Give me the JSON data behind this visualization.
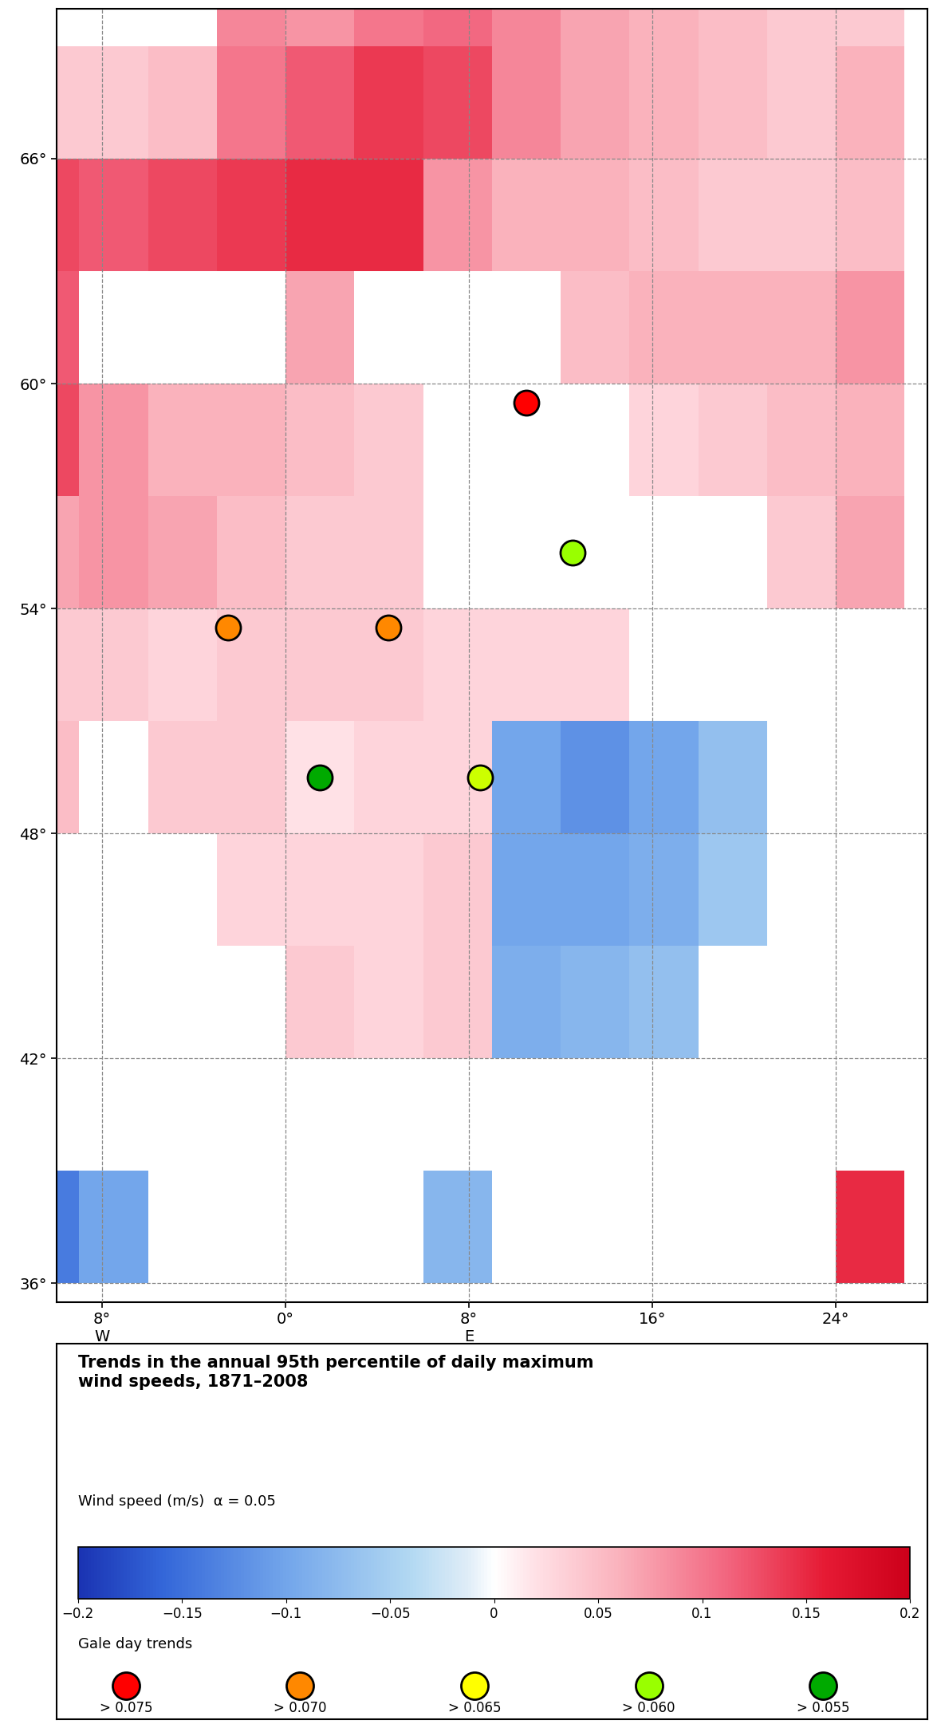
{
  "legend_title": "Trends in the annual 95th percentile of daily maximum\nwind speeds, 1871–2008",
  "colorbar_label": "Wind speed (m/s)  α = 0.05",
  "gale_day_label": "Gale day trends",
  "gale_day_circles": [
    {
      "color": "#ff0000",
      "label": "> 0.075"
    },
    {
      "color": "#ff8800",
      "label": "> 0.070"
    },
    {
      "color": "#ffff00",
      "label": "> 0.065"
    },
    {
      "color": "#99ff00",
      "label": "> 0.060"
    },
    {
      "color": "#00aa00",
      "label": "> 0.055"
    }
  ],
  "map_extent": [
    -10,
    28,
    35.5,
    70
  ],
  "lon_ticks": [
    -8,
    0,
    8,
    16,
    24
  ],
  "lat_ticks": [
    36,
    42,
    48,
    54,
    60,
    66
  ],
  "cell_size": 3,
  "grid_cells": [
    {
      "lon": -10.5,
      "lat": 67.5,
      "val": 0.04
    },
    {
      "lon": -10.5,
      "lat": 64.5,
      "val": 0.13
    },
    {
      "lon": -10.5,
      "lat": 61.5,
      "val": 0.12
    },
    {
      "lon": -10.5,
      "lat": 58.5,
      "val": 0.13
    },
    {
      "lon": -10.5,
      "lat": 55.5,
      "val": 0.07
    },
    {
      "lon": -10.5,
      "lat": 52.5,
      "val": 0.04
    },
    {
      "lon": -10.5,
      "lat": 49.5,
      "val": 0.05
    },
    {
      "lon": -10.5,
      "lat": 37.5,
      "val": -0.14
    },
    {
      "lon": -7.5,
      "lat": 67.5,
      "val": 0.04
    },
    {
      "lon": -7.5,
      "lat": 64.5,
      "val": 0.12
    },
    {
      "lon": -7.5,
      "lat": 58.5,
      "val": 0.08
    },
    {
      "lon": -7.5,
      "lat": 55.5,
      "val": 0.08
    },
    {
      "lon": -7.5,
      "lat": 52.5,
      "val": 0.04
    },
    {
      "lon": -7.5,
      "lat": 37.5,
      "val": -0.1
    },
    {
      "lon": -4.5,
      "lat": 67.5,
      "val": 0.05
    },
    {
      "lon": -4.5,
      "lat": 64.5,
      "val": 0.13
    },
    {
      "lon": -4.5,
      "lat": 58.5,
      "val": 0.06
    },
    {
      "lon": -4.5,
      "lat": 55.5,
      "val": 0.07
    },
    {
      "lon": -4.5,
      "lat": 52.5,
      "val": 0.03
    },
    {
      "lon": -4.5,
      "lat": 49.5,
      "val": 0.04
    },
    {
      "lon": -1.5,
      "lat": 70.0,
      "val": 0.09
    },
    {
      "lon": -1.5,
      "lat": 67.5,
      "val": 0.1
    },
    {
      "lon": -1.5,
      "lat": 64.5,
      "val": 0.14
    },
    {
      "lon": -1.5,
      "lat": 58.5,
      "val": 0.06
    },
    {
      "lon": -1.5,
      "lat": 55.5,
      "val": 0.05
    },
    {
      "lon": -1.5,
      "lat": 52.5,
      "val": 0.04
    },
    {
      "lon": -1.5,
      "lat": 49.5,
      "val": 0.04
    },
    {
      "lon": -1.5,
      "lat": 46.5,
      "val": 0.03
    },
    {
      "lon": 1.5,
      "lat": 70.0,
      "val": 0.08
    },
    {
      "lon": 1.5,
      "lat": 67.5,
      "val": 0.12
    },
    {
      "lon": 1.5,
      "lat": 64.5,
      "val": 0.15
    },
    {
      "lon": 1.5,
      "lat": 61.5,
      "val": 0.07
    },
    {
      "lon": 1.5,
      "lat": 58.5,
      "val": 0.05
    },
    {
      "lon": 1.5,
      "lat": 55.5,
      "val": 0.04
    },
    {
      "lon": 1.5,
      "lat": 52.5,
      "val": 0.04
    },
    {
      "lon": 1.5,
      "lat": 49.5,
      "val": 0.02
    },
    {
      "lon": 1.5,
      "lat": 46.5,
      "val": 0.03
    },
    {
      "lon": 1.5,
      "lat": 43.5,
      "val": 0.04
    },
    {
      "lon": 4.5,
      "lat": 70.0,
      "val": 0.1
    },
    {
      "lon": 4.5,
      "lat": 67.5,
      "val": 0.14
    },
    {
      "lon": 4.5,
      "lat": 64.5,
      "val": 0.15
    },
    {
      "lon": 4.5,
      "lat": 58.5,
      "val": 0.04
    },
    {
      "lon": 4.5,
      "lat": 55.5,
      "val": 0.04
    },
    {
      "lon": 4.5,
      "lat": 52.5,
      "val": 0.04
    },
    {
      "lon": 4.5,
      "lat": 49.5,
      "val": 0.03
    },
    {
      "lon": 4.5,
      "lat": 46.5,
      "val": 0.03
    },
    {
      "lon": 4.5,
      "lat": 43.5,
      "val": 0.03
    },
    {
      "lon": 7.5,
      "lat": 70.0,
      "val": 0.11
    },
    {
      "lon": 7.5,
      "lat": 67.5,
      "val": 0.13
    },
    {
      "lon": 7.5,
      "lat": 64.5,
      "val": 0.08
    },
    {
      "lon": 7.5,
      "lat": 52.5,
      "val": 0.03
    },
    {
      "lon": 7.5,
      "lat": 49.5,
      "val": 0.03
    },
    {
      "lon": 7.5,
      "lat": 46.5,
      "val": 0.04
    },
    {
      "lon": 7.5,
      "lat": 43.5,
      "val": 0.04
    },
    {
      "lon": 7.5,
      "lat": 37.5,
      "val": -0.08
    },
    {
      "lon": 10.5,
      "lat": 70.0,
      "val": 0.09
    },
    {
      "lon": 10.5,
      "lat": 67.5,
      "val": 0.09
    },
    {
      "lon": 10.5,
      "lat": 64.5,
      "val": 0.06
    },
    {
      "lon": 10.5,
      "lat": 52.5,
      "val": 0.03
    },
    {
      "lon": 10.5,
      "lat": 49.5,
      "val": -0.1
    },
    {
      "lon": 10.5,
      "lat": 46.5,
      "val": -0.1
    },
    {
      "lon": 10.5,
      "lat": 43.5,
      "val": -0.09
    },
    {
      "lon": 13.5,
      "lat": 70.0,
      "val": 0.07
    },
    {
      "lon": 13.5,
      "lat": 67.5,
      "val": 0.07
    },
    {
      "lon": 13.5,
      "lat": 64.5,
      "val": 0.06
    },
    {
      "lon": 13.5,
      "lat": 61.5,
      "val": 0.05
    },
    {
      "lon": 13.5,
      "lat": 52.5,
      "val": 0.03
    },
    {
      "lon": 13.5,
      "lat": 49.5,
      "val": -0.12
    },
    {
      "lon": 13.5,
      "lat": 46.5,
      "val": -0.1
    },
    {
      "lon": 13.5,
      "lat": 43.5,
      "val": -0.08
    },
    {
      "lon": 16.5,
      "lat": 70.0,
      "val": 0.06
    },
    {
      "lon": 16.5,
      "lat": 67.5,
      "val": 0.06
    },
    {
      "lon": 16.5,
      "lat": 64.5,
      "val": 0.05
    },
    {
      "lon": 16.5,
      "lat": 61.5,
      "val": 0.06
    },
    {
      "lon": 16.5,
      "lat": 58.5,
      "val": 0.03
    },
    {
      "lon": 16.5,
      "lat": 49.5,
      "val": -0.1
    },
    {
      "lon": 16.5,
      "lat": 46.5,
      "val": -0.09
    },
    {
      "lon": 16.5,
      "lat": 43.5,
      "val": -0.07
    },
    {
      "lon": 19.5,
      "lat": 70.0,
      "val": 0.05
    },
    {
      "lon": 19.5,
      "lat": 67.5,
      "val": 0.05
    },
    {
      "lon": 19.5,
      "lat": 64.5,
      "val": 0.04
    },
    {
      "lon": 19.5,
      "lat": 61.5,
      "val": 0.06
    },
    {
      "lon": 19.5,
      "lat": 58.5,
      "val": 0.04
    },
    {
      "lon": 19.5,
      "lat": 49.5,
      "val": -0.07
    },
    {
      "lon": 19.5,
      "lat": 46.5,
      "val": -0.06
    },
    {
      "lon": 22.5,
      "lat": 70.0,
      "val": 0.04
    },
    {
      "lon": 22.5,
      "lat": 67.5,
      "val": 0.04
    },
    {
      "lon": 22.5,
      "lat": 64.5,
      "val": 0.04
    },
    {
      "lon": 22.5,
      "lat": 61.5,
      "val": 0.06
    },
    {
      "lon": 22.5,
      "lat": 58.5,
      "val": 0.05
    },
    {
      "lon": 22.5,
      "lat": 55.5,
      "val": 0.04
    },
    {
      "lon": 25.5,
      "lat": 70.0,
      "val": 0.04
    },
    {
      "lon": 25.5,
      "lat": 67.5,
      "val": 0.06
    },
    {
      "lon": 25.5,
      "lat": 64.5,
      "val": 0.05
    },
    {
      "lon": 25.5,
      "lat": 61.5,
      "val": 0.08
    },
    {
      "lon": 25.5,
      "lat": 58.5,
      "val": 0.06
    },
    {
      "lon": 25.5,
      "lat": 55.5,
      "val": 0.07
    },
    {
      "lon": 25.5,
      "lat": 37.5,
      "val": 0.15
    }
  ],
  "station_circles": [
    {
      "lon": 10.5,
      "lat": 59.5,
      "color": "#ff0000"
    },
    {
      "lon": -2.5,
      "lat": 53.5,
      "color": "#ff8800"
    },
    {
      "lon": 4.5,
      "lat": 53.5,
      "color": "#ff8800"
    },
    {
      "lon": 12.5,
      "lat": 55.5,
      "color": "#99ff00"
    },
    {
      "lon": 1.5,
      "lat": 49.5,
      "color": "#00aa00"
    },
    {
      "lon": 8.5,
      "lat": 49.5,
      "color": "#ccff00"
    }
  ]
}
